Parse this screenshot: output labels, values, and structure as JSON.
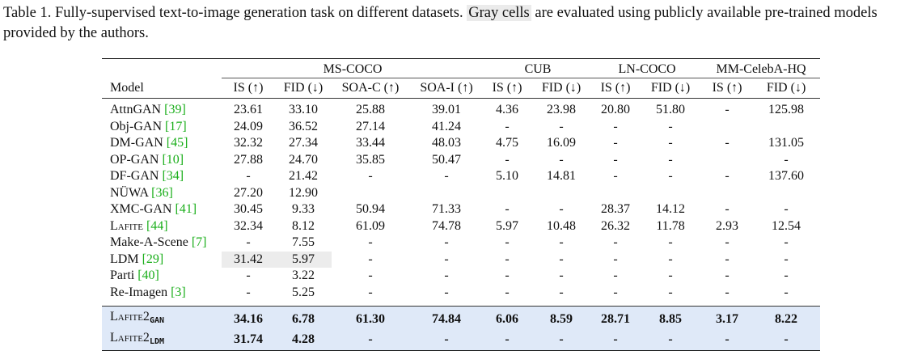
{
  "caption": {
    "lead": "Table 1. Fully-supervised text-to-image generation task on different datasets.",
    "gray_cells": "Gray cells",
    "rest": "are evaluated using publicly available pre-trained models provided by the authors."
  },
  "groups": [
    "MS-COCO",
    "CUB",
    "LN-COCO",
    "MM-CelebA-HQ"
  ],
  "columns": [
    "Model",
    "IS (↑)",
    "FID (↓)",
    "SOA-C (↑)",
    "SOA-I (↑)",
    "IS (↑)",
    "FID (↓)",
    "IS (↑)",
    "FID (↓)",
    "IS (↑)",
    "FID (↓)"
  ],
  "rows": [
    {
      "name": "AttnGAN",
      "ref": "[39]",
      "v": [
        "23.61",
        "33.10",
        "25.88",
        "39.01",
        "4.36",
        "23.98",
        "20.80",
        "51.80",
        "-",
        "125.98"
      ]
    },
    {
      "name": "Obj-GAN",
      "ref": "[17]",
      "v": [
        "24.09",
        "36.52",
        "27.14",
        "41.24",
        "-",
        "-",
        "-",
        "-",
        "",
        ""
      ]
    },
    {
      "name": "DM-GAN",
      "ref": "[45]",
      "v": [
        "32.32",
        "27.34",
        "33.44",
        "48.03",
        "4.75",
        "16.09",
        "-",
        "-",
        "-",
        "131.05"
      ]
    },
    {
      "name": "OP-GAN",
      "ref": "[10]",
      "v": [
        "27.88",
        "24.70",
        "35.85",
        "50.47",
        "-",
        "-",
        "-",
        "-",
        "",
        "-"
      ]
    },
    {
      "name": "DF-GAN",
      "ref": "[34]",
      "v": [
        "-",
        "21.42",
        "-",
        "-",
        "5.10",
        "14.81",
        "-",
        "-",
        "-",
        "137.60"
      ]
    },
    {
      "name": "NÜWA",
      "ref": "[36]",
      "v": [
        "27.20",
        "12.90",
        "",
        "",
        "",
        "",
        "",
        "",
        "",
        ""
      ]
    },
    {
      "name": "XMC-GAN",
      "ref": "[41]",
      "v": [
        "30.45",
        "9.33",
        "50.94",
        "71.33",
        "-",
        "-",
        "28.37",
        "14.12",
        "-",
        "-"
      ]
    },
    {
      "name": "Lafite",
      "ref": "[44]",
      "v": [
        "32.34",
        "8.12",
        "61.09",
        "74.78",
        "5.97",
        "10.48",
        "26.32",
        "11.78",
        "2.93",
        "12.54"
      ]
    },
    {
      "name": "Make-A-Scene",
      "ref": "[7]",
      "v": [
        "-",
        "7.55",
        "-",
        "-",
        "-",
        "-",
        "-",
        "-",
        "-",
        "-"
      ]
    },
    {
      "name": "LDM",
      "ref": "[29]",
      "v": [
        "31.42",
        "5.97",
        "-",
        "-",
        "-",
        "-",
        "-",
        "-",
        "-",
        "-"
      ]
    },
    {
      "name": "Parti",
      "ref": "[40]",
      "v": [
        "-",
        "3.22",
        "-",
        "-",
        "-",
        "-",
        "-",
        "-",
        "-",
        "-"
      ]
    },
    {
      "name": "Re-Imagen",
      "ref": "[3]",
      "v": [
        "-",
        "5.25",
        "-",
        "-",
        "-",
        "-",
        "-",
        "-",
        "-",
        "-"
      ]
    }
  ],
  "ours": [
    {
      "name": "Lafite2",
      "sub": "GAN",
      "v": [
        "34.16",
        "6.78",
        "61.30",
        "74.84",
        "6.06",
        "8.59",
        "28.71",
        "8.85",
        "3.17",
        "8.22"
      ]
    },
    {
      "name": "Lafite2",
      "sub": "LDM",
      "v": [
        "31.74",
        "4.28",
        "-",
        "-",
        "-",
        "-",
        "-",
        "-",
        "-",
        "-"
      ]
    }
  ]
}
